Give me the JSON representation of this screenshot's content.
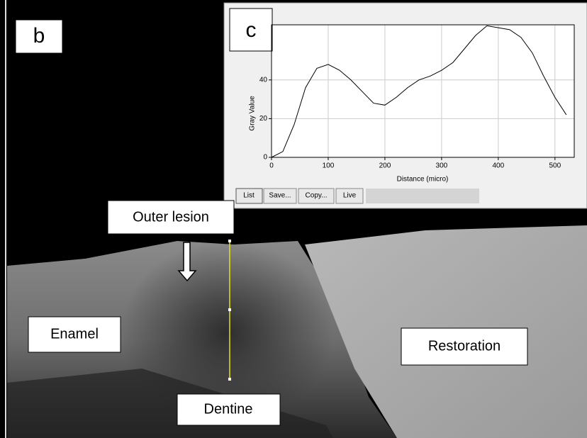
{
  "panels": [
    "b",
    "c"
  ],
  "annotations": [
    "Outer lesion",
    "Enamel",
    "Restoration",
    "Dentine"
  ],
  "buttons": [
    "List",
    "Save...",
    "Copy...",
    "Live"
  ],
  "chart_data": {
    "type": "line",
    "x_label": "Distance (micro)",
    "y_label": "Gray Value",
    "x": [
      0,
      20,
      40,
      60,
      80,
      100,
      120,
      140,
      160,
      180,
      200,
      220,
      240,
      260,
      280,
      300,
      320,
      340,
      360,
      380,
      400,
      420,
      440,
      460,
      480,
      500,
      520
    ],
    "values": [
      0,
      3,
      17,
      36,
      46,
      48,
      45,
      40,
      34,
      28,
      27,
      31,
      36,
      40,
      42,
      45,
      49,
      56,
      63,
      68,
      67,
      66,
      62,
      54,
      42,
      31,
      22
    ],
    "color": "#000000",
    "xlim": [
      0,
      534
    ],
    "ylim": [
      0,
      68.5
    ],
    "xticks": [
      0,
      100,
      200,
      300,
      400,
      500
    ],
    "yticks": [
      0,
      20,
      40
    ],
    "grid": true
  }
}
